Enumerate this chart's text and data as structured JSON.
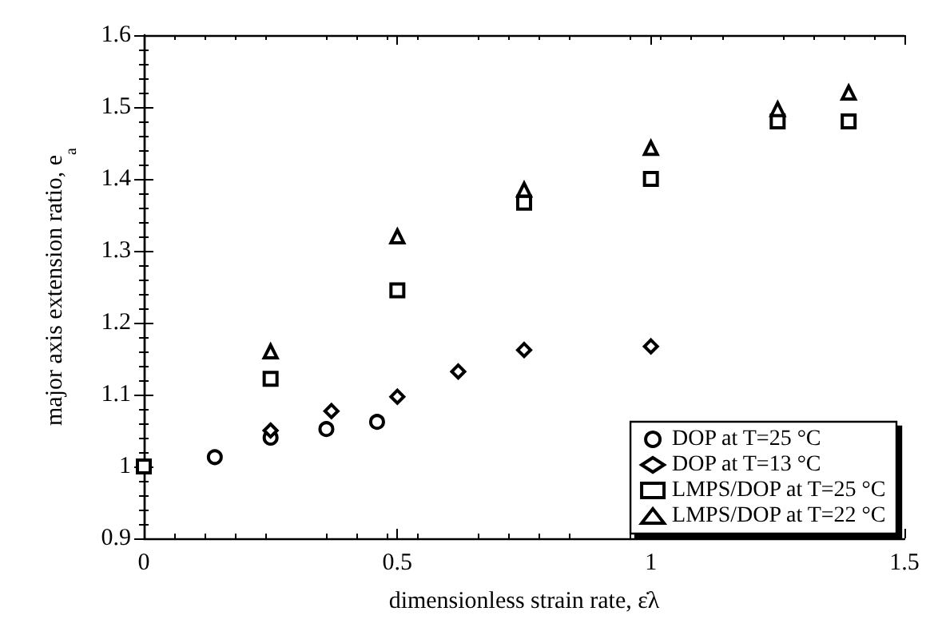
{
  "chart_data": {
    "type": "scatter",
    "xlabel": "dimensionless strain rate, ε̇λ",
    "ylabel": "major axis extension ratio, e$_{a}$",
    "xlim": [
      0,
      1.5
    ],
    "xticks": [
      0,
      0.5,
      1,
      1.5
    ],
    "ylim": [
      0.9,
      1.6
    ],
    "yticks": [
      0.9,
      1,
      1.1,
      1.2,
      1.3,
      1.4,
      1.5,
      1.6
    ],
    "grid": false,
    "legend": "bottom right",
    "series": [
      {
        "name": "DOP at T=25 °C",
        "color": "#000000",
        "marker": "circle",
        "x": [
          0.14,
          0.25,
          0.36,
          0.46
        ],
        "values": [
          1.013,
          1.04,
          1.052,
          1.062
        ]
      },
      {
        "name": "DOP at T=13 °C",
        "color": "#000000",
        "marker": "diamond",
        "x": [
          0.25,
          0.37,
          0.5,
          0.62,
          0.75,
          1.0
        ],
        "values": [
          1.05,
          1.077,
          1.097,
          1.132,
          1.162,
          1.167
        ]
      },
      {
        "name": "LMPS/DOP at T=25 °C",
        "color": "#000000",
        "marker": "square",
        "x": [
          0,
          0.25,
          0.5,
          0.75,
          1.0,
          1.25,
          1.39
        ],
        "values": [
          1,
          1.122,
          1.245,
          1.367,
          1.4,
          1.48,
          1.48
        ]
      },
      {
        "name": "LMPS/DOP at T=22 °C",
        "color": "#000000",
        "marker": "triangle",
        "x": [
          0.25,
          0.5,
          0.75,
          1.0,
          1.25,
          1.39
        ],
        "values": [
          1.16,
          1.32,
          1.385,
          1.443,
          1.497,
          1.52
        ]
      }
    ]
  }
}
